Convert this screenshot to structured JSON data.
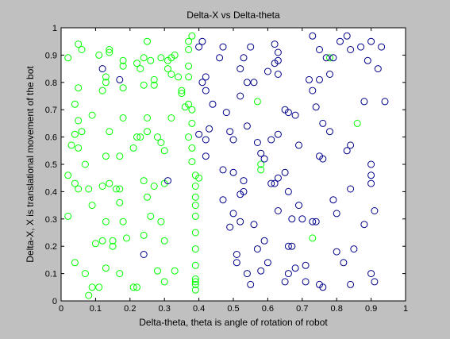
{
  "chart_data": {
    "type": "scatter",
    "title": "Delta-X vs Delta-theta",
    "xlabel": "Delta-theta, theta is angle of rotation of robot",
    "ylabel": "Delta-X, X is translational movement of the bot",
    "xlim": [
      0,
      1
    ],
    "ylim": [
      0,
      1
    ],
    "xticks": [
      "0",
      "0.1",
      "0.2",
      "0.3",
      "0.4",
      "0.5",
      "0.6",
      "0.7",
      "0.8",
      "0.9",
      "1"
    ],
    "yticks": [
      "0",
      "0.1",
      "0.2",
      "0.3",
      "0.4",
      "0.5",
      "0.6",
      "0.7",
      "0.8",
      "0.9",
      "1"
    ],
    "grid": false,
    "marker": "open-circle",
    "colors": {
      "series1": "#00ff00",
      "series2": "#00008b"
    },
    "series": [
      {
        "color": "#00ff00",
        "points": [
          [
            0.02,
            0.89
          ],
          [
            0.05,
            0.94
          ],
          [
            0.06,
            0.92
          ],
          [
            0.05,
            0.78
          ],
          [
            0.04,
            0.72
          ],
          [
            0.05,
            0.66
          ],
          [
            0.03,
            0.57
          ],
          [
            0.04,
            0.61
          ],
          [
            0.06,
            0.62
          ],
          [
            0.05,
            0.56
          ],
          [
            0.09,
            0.68
          ],
          [
            0.07,
            0.5
          ],
          [
            0.02,
            0.46
          ],
          [
            0.04,
            0.43
          ],
          [
            0.05,
            0.41
          ],
          [
            0.08,
            0.41
          ],
          [
            0.09,
            0.35
          ],
          [
            0.02,
            0.31
          ],
          [
            0.04,
            0.14
          ],
          [
            0.07,
            0.1
          ],
          [
            0.08,
            0.02
          ],
          [
            0.09,
            0.05
          ],
          [
            0.1,
            0.21
          ],
          [
            0.11,
            0.9
          ],
          [
            0.13,
            0.8
          ],
          [
            0.13,
            0.82
          ],
          [
            0.14,
            0.92
          ],
          [
            0.14,
            0.91
          ],
          [
            0.12,
            0.77
          ],
          [
            0.14,
            0.62
          ],
          [
            0.13,
            0.53
          ],
          [
            0.12,
            0.42
          ],
          [
            0.14,
            0.43
          ],
          [
            0.16,
            0.41
          ],
          [
            0.17,
            0.41
          ],
          [
            0.13,
            0.29
          ],
          [
            0.15,
            0.22
          ],
          [
            0.15,
            0.2
          ],
          [
            0.12,
            0.22
          ],
          [
            0.13,
            0.12
          ],
          [
            0.11,
            0.05
          ],
          [
            0.17,
            0.1
          ],
          [
            0.17,
            0.36
          ],
          [
            0.18,
            0.86
          ],
          [
            0.18,
            0.88
          ],
          [
            0.18,
            0.78
          ],
          [
            0.18,
            0.67
          ],
          [
            0.17,
            0.53
          ],
          [
            0.18,
            0.29
          ],
          [
            0.19,
            0.23
          ],
          [
            0.21,
            0.56
          ],
          [
            0.21,
            0.05
          ],
          [
            0.22,
            0.05
          ],
          [
            0.22,
            0.87
          ],
          [
            0.24,
            0.89
          ],
          [
            0.25,
            0.95
          ],
          [
            0.23,
            0.85
          ],
          [
            0.24,
            0.79
          ],
          [
            0.22,
            0.6
          ],
          [
            0.23,
            0.6
          ],
          [
            0.24,
            0.44
          ],
          [
            0.25,
            0.38
          ],
          [
            0.26,
            0.31
          ],
          [
            0.24,
            0.24
          ],
          [
            0.25,
            0.62
          ],
          [
            0.25,
            0.67
          ],
          [
            0.26,
            0.88
          ],
          [
            0.27,
            0.81
          ],
          [
            0.27,
            0.79
          ],
          [
            0.27,
            0.42
          ],
          [
            0.28,
            0.6
          ],
          [
            0.29,
            0.58
          ],
          [
            0.29,
            0.89
          ],
          [
            0.31,
            0.88
          ],
          [
            0.3,
            0.55
          ],
          [
            0.3,
            0.43
          ],
          [
            0.3,
            0.22
          ],
          [
            0.29,
            0.29
          ],
          [
            0.28,
            0.11
          ],
          [
            0.3,
            0.07
          ],
          [
            0.32,
            0.89
          ],
          [
            0.31,
            0.85
          ],
          [
            0.32,
            0.83
          ],
          [
            0.33,
            0.9
          ],
          [
            0.34,
            0.82
          ],
          [
            0.32,
            0.67
          ],
          [
            0.33,
            0.11
          ],
          [
            0.35,
            0.76
          ],
          [
            0.35,
            0.77
          ],
          [
            0.36,
            0.71
          ],
          [
            0.37,
            0.95
          ],
          [
            0.37,
            0.92
          ],
          [
            0.37,
            0.86
          ],
          [
            0.37,
            0.82
          ],
          [
            0.37,
            0.72
          ],
          [
            0.37,
            0.6
          ],
          [
            0.38,
            0.56
          ],
          [
            0.38,
            0.51
          ],
          [
            0.39,
            0.46
          ],
          [
            0.39,
            0.42
          ],
          [
            0.39,
            0.38
          ],
          [
            0.39,
            0.35
          ],
          [
            0.39,
            0.31
          ],
          [
            0.39,
            0.25
          ],
          [
            0.39,
            0.19
          ],
          [
            0.39,
            0.13
          ],
          [
            0.39,
            0.07
          ],
          [
            0.39,
            0.06
          ],
          [
            0.39,
            0.04
          ],
          [
            0.39,
            0.08
          ],
          [
            0.38,
            0.7
          ],
          [
            0.38,
            0.65
          ],
          [
            0.38,
            0.97
          ],
          [
            0.4,
            0.45
          ],
          [
            0.57,
            0.73
          ],
          [
            0.58,
            0.5
          ],
          [
            0.58,
            0.48
          ],
          [
            0.73,
            0.23
          ],
          [
            0.78,
            0.89
          ],
          [
            0.86,
            0.65
          ]
        ]
      },
      {
        "color": "#00008b",
        "points": [
          [
            0.12,
            0.85
          ],
          [
            0.17,
            0.81
          ],
          [
            0.24,
            0.17
          ],
          [
            0.31,
            0.44
          ],
          [
            0.4,
            0.93
          ],
          [
            0.41,
            0.95
          ],
          [
            0.41,
            0.8
          ],
          [
            0.42,
            0.82
          ],
          [
            0.42,
            0.77
          ],
          [
            0.4,
            0.61
          ],
          [
            0.42,
            0.59
          ],
          [
            0.42,
            0.53
          ],
          [
            0.43,
            0.63
          ],
          [
            0.44,
            0.72
          ],
          [
            0.46,
            0.89
          ],
          [
            0.47,
            0.93
          ],
          [
            0.48,
            0.69
          ],
          [
            0.47,
            0.48
          ],
          [
            0.49,
            0.62
          ],
          [
            0.5,
            0.59
          ],
          [
            0.5,
            0.47
          ],
          [
            0.47,
            0.37
          ],
          [
            0.49,
            0.27
          ],
          [
            0.5,
            0.32
          ],
          [
            0.52,
            0.39
          ],
          [
            0.51,
            0.14
          ],
          [
            0.51,
            0.17
          ],
          [
            0.52,
            0.29
          ],
          [
            0.53,
            0.4
          ],
          [
            0.53,
            0.44
          ],
          [
            0.52,
            0.75
          ],
          [
            0.52,
            0.85
          ],
          [
            0.53,
            0.89
          ],
          [
            0.54,
            0.64
          ],
          [
            0.54,
            0.8
          ],
          [
            0.56,
            0.8
          ],
          [
            0.55,
            0.93
          ],
          [
            0.57,
            0.58
          ],
          [
            0.58,
            0.54
          ],
          [
            0.59,
            0.52
          ],
          [
            0.56,
            0.28
          ],
          [
            0.57,
            0.19
          ],
          [
            0.59,
            0.22
          ],
          [
            0.54,
            0.1
          ],
          [
            0.55,
            0.06
          ],
          [
            0.6,
            0.84
          ],
          [
            0.61,
            0.59
          ],
          [
            0.61,
            0.43
          ],
          [
            0.62,
            0.43
          ],
          [
            0.63,
            0.45
          ],
          [
            0.63,
            0.33
          ],
          [
            0.63,
            0.61
          ],
          [
            0.63,
            0.83
          ],
          [
            0.63,
            0.88
          ],
          [
            0.62,
            0.87
          ],
          [
            0.63,
            0.91
          ],
          [
            0.62,
            0.94
          ],
          [
            0.65,
            0.47
          ],
          [
            0.65,
            0.7
          ],
          [
            0.66,
            0.69
          ],
          [
            0.66,
            0.4
          ],
          [
            0.67,
            0.3
          ],
          [
            0.68,
            0.68
          ],
          [
            0.69,
            0.57
          ],
          [
            0.69,
            0.35
          ],
          [
            0.67,
            0.2
          ],
          [
            0.66,
            0.1
          ],
          [
            0.65,
            0.07
          ],
          [
            0.68,
            0.12
          ],
          [
            0.71,
            0.13
          ],
          [
            0.71,
            0.07
          ],
          [
            0.72,
            0.81
          ],
          [
            0.73,
            0.77
          ],
          [
            0.74,
            0.71
          ],
          [
            0.73,
            0.29
          ],
          [
            0.74,
            0.29
          ],
          [
            0.75,
            0.53
          ],
          [
            0.76,
            0.52
          ],
          [
            0.76,
            0.65
          ],
          [
            0.75,
            0.81
          ],
          [
            0.75,
            0.92
          ],
          [
            0.73,
            0.97
          ],
          [
            0.77,
            0.89
          ],
          [
            0.78,
            0.83
          ],
          [
            0.78,
            0.62
          ],
          [
            0.79,
            0.37
          ],
          [
            0.8,
            0.32
          ],
          [
            0.8,
            0.18
          ],
          [
            0.79,
            0.89
          ],
          [
            0.81,
            0.95
          ],
          [
            0.83,
            0.97
          ],
          [
            0.84,
            0.92
          ],
          [
            0.84,
            0.57
          ],
          [
            0.83,
            0.55
          ],
          [
            0.84,
            0.41
          ],
          [
            0.85,
            0.19
          ],
          [
            0.82,
            0.14
          ],
          [
            0.84,
            0.06
          ],
          [
            0.87,
            0.93
          ],
          [
            0.88,
            0.73
          ],
          [
            0.88,
            0.28
          ],
          [
            0.89,
            0.88
          ],
          [
            0.9,
            0.95
          ],
          [
            0.9,
            0.46
          ],
          [
            0.9,
            0.5
          ],
          [
            0.9,
            0.43
          ],
          [
            0.91,
            0.33
          ],
          [
            0.92,
            0.85
          ],
          [
            0.93,
            0.93
          ],
          [
            0.94,
            0.73
          ],
          [
            0.9,
            0.1
          ],
          [
            0.91,
            0.07
          ],
          [
            0.76,
            0.05
          ],
          [
            0.75,
            0.06
          ],
          [
            0.7,
            0.3
          ],
          [
            0.66,
            0.2
          ],
          [
            0.6,
            0.14
          ],
          [
            0.58,
            0.11
          ]
        ]
      }
    ]
  }
}
